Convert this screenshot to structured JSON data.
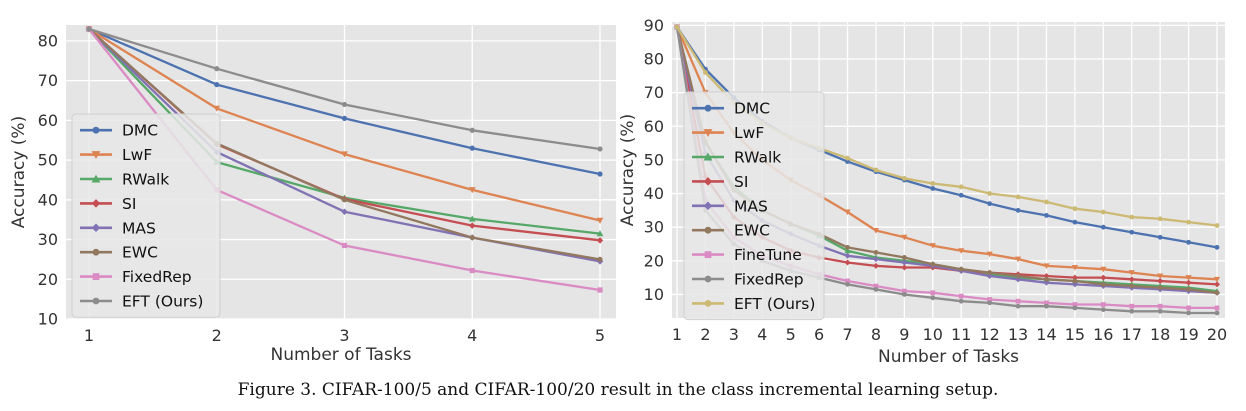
{
  "caption": "Figure 3. CIFAR-100/5 and CIFAR-100/20 result in the class incremental learning setup.",
  "colors": {
    "plot_bg": "#e5e5e5",
    "grid": "#ffffff",
    "DMC": "#4c72b0",
    "LwF": "#dd8452",
    "RWalk": "#55a868",
    "SI": "#c44e52",
    "MAS": "#8172b3",
    "EWC": "#937860",
    "FixedRep": "#da8bc3",
    "FineTune": "#da8bc3",
    "EFT (Ours)": "#8c8c8c",
    "EFT (Ours) right": "#ccb974"
  },
  "chart_data": [
    {
      "id": "left",
      "type": "line",
      "title": "",
      "xlabel": "Number of Tasks",
      "ylabel": "Accuracy (%)",
      "x": [
        1,
        2,
        3,
        4,
        5
      ],
      "xticks": [
        "1",
        "2",
        "3",
        "4",
        "5"
      ],
      "yticks": [
        10,
        20,
        30,
        40,
        50,
        60,
        70,
        80
      ],
      "ylim": [
        10,
        84
      ],
      "grid": true,
      "legend_position": "center-left",
      "series": [
        {
          "name": "DMC",
          "color": "#4c72b0",
          "marker": "circle",
          "values": [
            83,
            69,
            60.5,
            53,
            46.5
          ]
        },
        {
          "name": "LwF",
          "color": "#dd8452",
          "marker": "triangle-down",
          "values": [
            83,
            63,
            51.5,
            42.5,
            34.8
          ]
        },
        {
          "name": "RWalk",
          "color": "#55a868",
          "marker": "triangle-up",
          "values": [
            83,
            49.5,
            40.5,
            35.2,
            31.5
          ]
        },
        {
          "name": "SI",
          "color": "#c44e52",
          "marker": "diamond",
          "values": [
            83,
            54,
            40.2,
            33.5,
            29.8
          ]
        },
        {
          "name": "MAS",
          "color": "#8172b3",
          "marker": "diamond",
          "values": [
            83,
            52,
            37,
            30.5,
            24.5
          ]
        },
        {
          "name": "EWC",
          "color": "#937860",
          "marker": "circle",
          "values": [
            83,
            54.2,
            40,
            30.5,
            25
          ]
        },
        {
          "name": "FixedRep",
          "color": "#da8bc3",
          "marker": "square",
          "values": [
            83,
            42.5,
            28.5,
            22.2,
            17.3
          ]
        },
        {
          "name": "EFT (Ours)",
          "color": "#8c8c8c",
          "marker": "circle",
          "values": [
            83,
            73,
            64,
            57.5,
            52.8
          ]
        }
      ]
    },
    {
      "id": "right",
      "type": "line",
      "title": "",
      "xlabel": "Number of Tasks",
      "ylabel": "Accuracy (%)",
      "x": [
        1,
        2,
        3,
        4,
        5,
        6,
        7,
        8,
        9,
        10,
        11,
        12,
        13,
        14,
        15,
        16,
        17,
        18,
        19,
        20
      ],
      "xticks": [
        "1",
        "2",
        "3",
        "4",
        "5",
        "6",
        "7",
        "8",
        "9",
        "10",
        "11",
        "12",
        "13",
        "14",
        "15",
        "16",
        "17",
        "18",
        "19",
        "20"
      ],
      "yticks": [
        10,
        20,
        30,
        40,
        50,
        60,
        70,
        80,
        90
      ],
      "ylim": [
        3,
        91
      ],
      "grid": true,
      "legend_position": "center-left",
      "series": [
        {
          "name": "DMC",
          "color": "#4c72b0",
          "marker": "circle",
          "values": [
            89.5,
            77,
            68.5,
            61.5,
            56.5,
            53,
            49.5,
            46.5,
            44,
            41.5,
            39.5,
            37,
            35,
            33.5,
            31.5,
            30,
            28.5,
            27,
            25.5,
            24
          ]
        },
        {
          "name": "LwF",
          "color": "#dd8452",
          "marker": "triangle-down",
          "values": [
            89.5,
            70,
            58,
            50,
            44,
            39.5,
            34.5,
            29,
            27,
            24.5,
            23,
            22,
            20.5,
            18.5,
            18,
            17.5,
            16.5,
            15.5,
            15,
            14.5
          ]
        },
        {
          "name": "RWalk",
          "color": "#55a868",
          "marker": "triangle-up",
          "values": [
            89.5,
            55,
            42,
            35,
            31,
            27.5,
            23,
            21,
            20,
            19,
            17.5,
            16,
            15,
            14.5,
            14,
            13.5,
            13,
            12.5,
            12,
            11
          ]
        },
        {
          "name": "SI",
          "color": "#c44e52",
          "marker": "diamond",
          "values": [
            89.5,
            45,
            33,
            27,
            23,
            21,
            19.5,
            18.5,
            18,
            18,
            17,
            16.5,
            16,
            15.5,
            15,
            15,
            14.5,
            14,
            13.5,
            13
          ]
        },
        {
          "name": "MAS",
          "color": "#8172b3",
          "marker": "diamond",
          "values": [
            89.5,
            52,
            38,
            32,
            28,
            24.5,
            21.5,
            20.5,
            19.5,
            18.5,
            17,
            15.5,
            14.5,
            13.5,
            13,
            12.5,
            12,
            11.5,
            11,
            10.5
          ]
        },
        {
          "name": "EWC",
          "color": "#937860",
          "marker": "circle",
          "values": [
            89.5,
            55.5,
            41,
            35,
            31,
            28,
            24,
            22.5,
            21,
            19,
            17.5,
            16.5,
            15.5,
            14.5,
            14,
            13,
            12.5,
            12,
            11.5,
            10.5
          ]
        },
        {
          "name": "FineTune",
          "color": "#da8bc3",
          "marker": "square",
          "values": [
            89.5,
            38,
            27,
            21.5,
            18.5,
            16,
            14,
            12.5,
            11,
            10.5,
            9.5,
            8.5,
            8,
            7.5,
            7,
            7,
            6.5,
            6.5,
            6,
            6
          ]
        },
        {
          "name": "FixedRep",
          "color": "#8c8c8c",
          "marker": "circle",
          "values": [
            89.5,
            35,
            25,
            20,
            17,
            15,
            13,
            11.5,
            10,
            9,
            8,
            7.5,
            6.5,
            6.5,
            6,
            5.5,
            5,
            5,
            4.5,
            4.5
          ]
        },
        {
          "name": "EFT (Ours)",
          "color": "#ccb974",
          "marker": "circle",
          "values": [
            89.5,
            76,
            67,
            61,
            56.5,
            53.5,
            50.5,
            47,
            44.5,
            43,
            42,
            40,
            39,
            37.5,
            35.5,
            34.5,
            33,
            32.5,
            31.5,
            30.5
          ]
        }
      ]
    }
  ]
}
